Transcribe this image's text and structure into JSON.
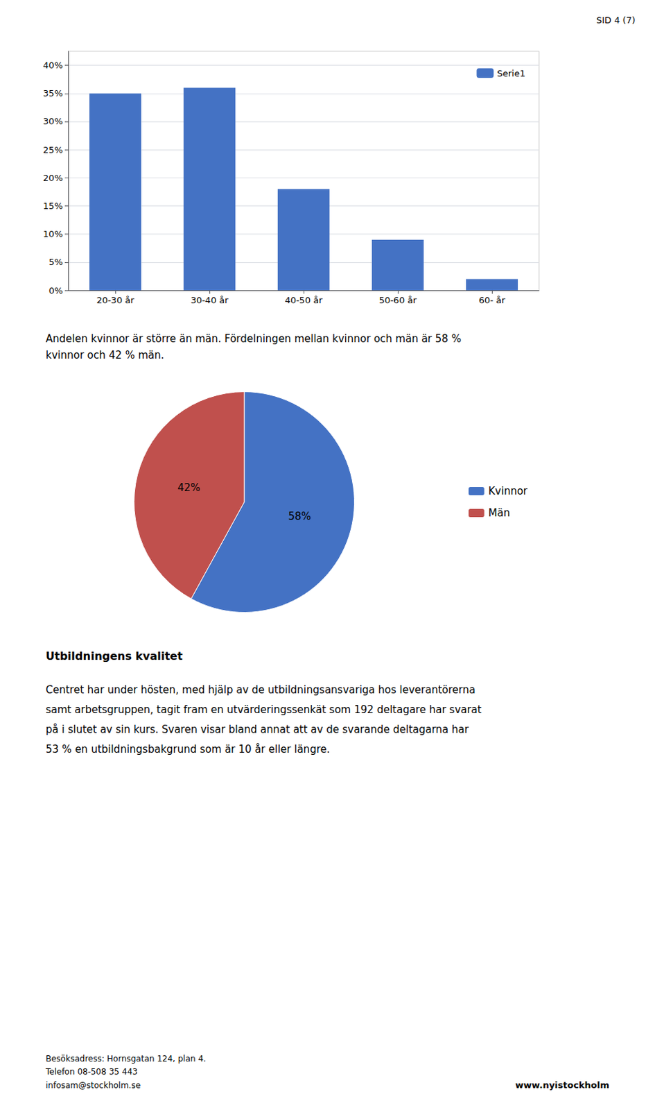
{
  "page_label": "SID 4 (7)",
  "chart_data": [
    {
      "type": "bar",
      "categories": [
        "20-30 år",
        "30-40 år",
        "40-50 år",
        "50-60 år",
        "60- år"
      ],
      "series": [
        {
          "name": "Serie1",
          "color": "#4472C4",
          "values": [
            0.35,
            0.36,
            0.18,
            0.09,
            0.02
          ]
        }
      ],
      "ylim": [
        0,
        0.425
      ],
      "yticks": [
        {
          "value": 0,
          "label": "0%"
        },
        {
          "value": 0.05,
          "label": "5%"
        },
        {
          "value": 0.1,
          "label": "10%"
        },
        {
          "value": 0.15,
          "label": "15%"
        },
        {
          "value": 0.2,
          "label": "20%"
        },
        {
          "value": 0.25,
          "label": "25%"
        },
        {
          "value": 0.3,
          "label": "30%"
        },
        {
          "value": 0.35,
          "label": "35%"
        },
        {
          "value": 0.4,
          "label": "40%"
        }
      ],
      "grid": true,
      "legend": "upper right"
    },
    {
      "type": "pie",
      "categories": [
        "Kvinnor",
        "Män"
      ],
      "values": [
        58,
        42
      ],
      "value_labels": [
        "58%",
        "42%"
      ],
      "colors": [
        "#4472C4",
        "#C0504D"
      ],
      "data_labels": true,
      "legend": "right"
    }
  ],
  "intro_lines": [
    "Andelen kvinnor är större än män. Fördelningen mellan kvinnor och män är 58 %",
    "kvinnor och 42 % män."
  ],
  "section": {
    "title": "Utbildningens kvalitet",
    "lines": [
      "Centret har under hösten, med hjälp av de utbildningsansvariga hos leverantörerna",
      "samt arbetsgruppen, tagit fram en utvärderingssenkät som 192 deltagare har svarat",
      "på i slutet av sin kurs. Svaren visar bland annat att av de svarande deltagarna har",
      "53 % en utbildningsbakgrund som är 10 år eller längre."
    ]
  },
  "footer": {
    "lines": [
      "Besöksadress: Hornsgatan 124, plan 4.",
      "Telefon 08-508 35 443",
      "infosam@stockholm.se"
    ],
    "right": "www.nyistockholm"
  }
}
